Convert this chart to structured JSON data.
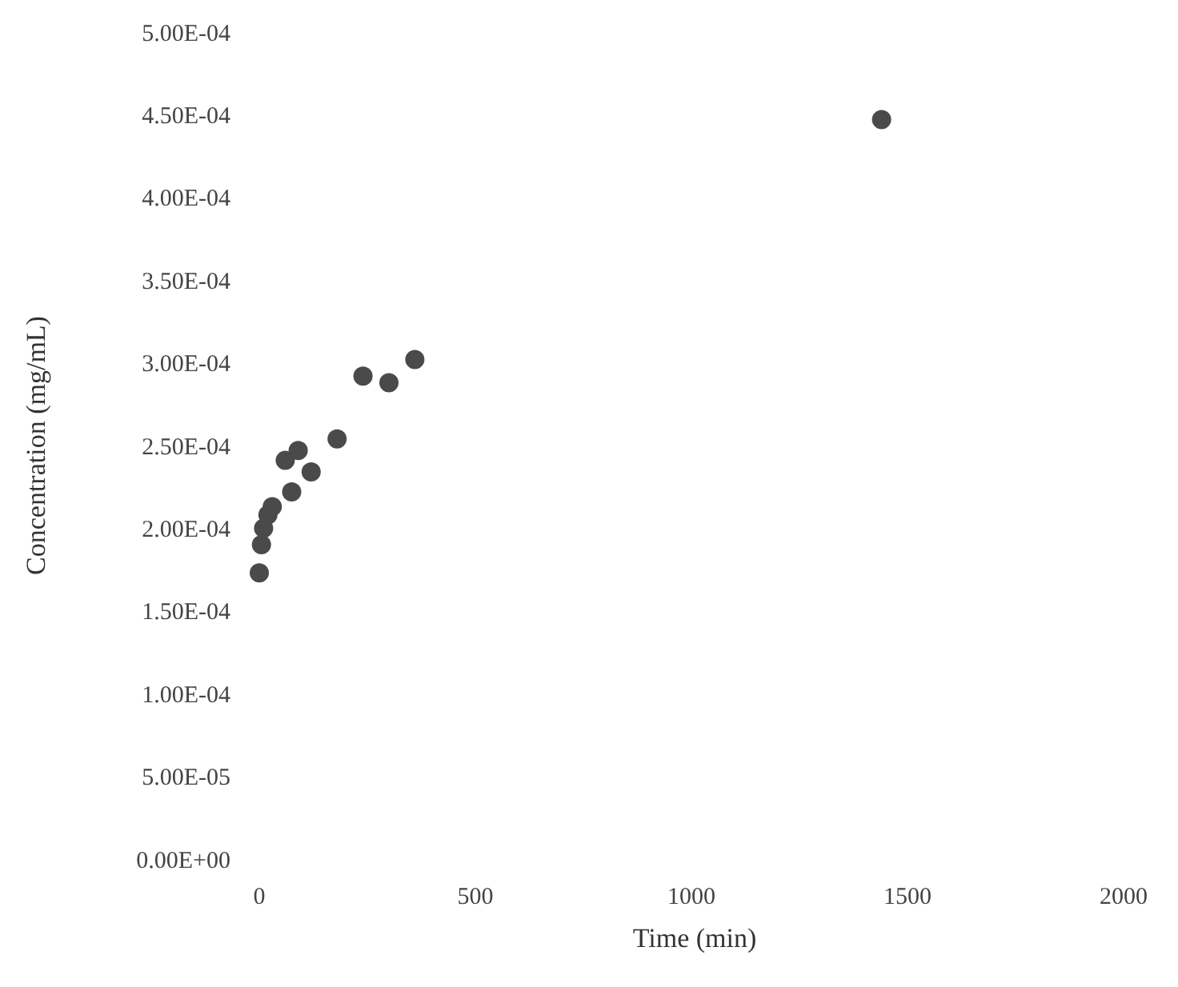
{
  "chart_data": {
    "type": "scatter",
    "xlabel": "Time (min)",
    "ylabel": "Concentration (mg/mL)",
    "x": [
      0,
      5,
      10,
      20,
      30,
      75,
      60,
      90,
      120,
      180,
      240,
      300,
      360,
      1440
    ],
    "series": [
      {
        "color": "#4a4a4a",
        "values": [
          0.000173,
          0.00019,
          0.0002,
          0.000208,
          0.000213,
          0.000222,
          0.000241,
          0.000247,
          0.000234,
          0.000254,
          0.000292,
          0.000288,
          0.000302,
          0.000447
        ]
      }
    ],
    "xlim": [
      0,
      2000
    ],
    "xticks": [
      0,
      500,
      1000,
      1500,
      2000
    ],
    "ylim": [
      0,
      0.0005
    ],
    "yticks": [
      {
        "value": 0,
        "label": "0.00E+00"
      },
      {
        "value": 5e-05,
        "label": "5.00E-05"
      },
      {
        "value": 0.0001,
        "label": "1.00E-04"
      },
      {
        "value": 0.00015,
        "label": "1.50E-04"
      },
      {
        "value": 0.0002,
        "label": "2.00E-04"
      },
      {
        "value": 0.00025,
        "label": "2.50E-04"
      },
      {
        "value": 0.0003,
        "label": "3.00E-04"
      },
      {
        "value": 0.00035,
        "label": "3.50E-04"
      },
      {
        "value": 0.0004,
        "label": "4.00E-04"
      },
      {
        "value": 0.00045,
        "label": "4.50E-04"
      },
      {
        "value": 0.0005,
        "label": "5.00E-04"
      }
    ],
    "marker": "circle",
    "grid": false
  }
}
